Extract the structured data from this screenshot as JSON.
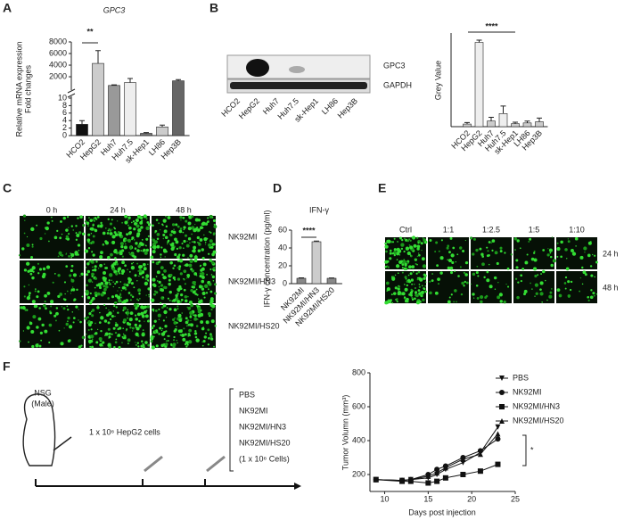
{
  "panels": {
    "letters": [
      "A",
      "B",
      "C",
      "D",
      "E",
      "F"
    ]
  },
  "blot": {
    "bands": [
      "GPC3",
      "GAPDH"
    ]
  },
  "panel_c": {
    "columns": [
      "0 h",
      "24 h",
      "48 h"
    ],
    "rows": [
      "NK92MI",
      "NK92MI/HN3",
      "NK92MI/HS20"
    ]
  },
  "panel_e": {
    "columns": [
      "Ctrl",
      "1:1",
      "1:2.5",
      "1:5",
      "1:10"
    ],
    "rows": [
      "24 h",
      "48 h"
    ]
  },
  "schematic": {
    "mouse": "NSG",
    "sex": "(Male)",
    "injection": "1 x 10⁶ HepG2 cells",
    "groups": [
      "PBS",
      "NK92MI",
      "NK92MI/HN3",
      "NK92MI/HS20"
    ],
    "dose": "(1 x 10⁶ Cells)"
  },
  "chart_data": [
    {
      "type": "bar",
      "title": "GPC3",
      "y_label": [
        "Relative mRNA expression",
        "Fold changes"
      ],
      "categories": [
        "HCO2",
        "HepG2",
        "Huh7",
        "Huh7.5",
        "sk-Hep1",
        "LH86",
        "Hep3B"
      ],
      "values": [
        3,
        4300,
        500,
        1000,
        0.6,
        2.3,
        1300
      ],
      "errors": [
        1,
        2200,
        100,
        700,
        0.2,
        0.5,
        200
      ],
      "colors": [
        "#111111",
        "#cccccc",
        "#999999",
        "#eeeeee",
        "#777777",
        "#cccccc",
        "#666666"
      ],
      "y_segments": [
        {
          "ylim": [
            0,
            10
          ],
          "yticks": [
            0,
            2,
            4,
            6,
            8,
            10
          ]
        },
        {
          "ylim": [
            10,
            8000
          ],
          "yticks": [
            2000,
            4000,
            6000,
            8000
          ]
        }
      ],
      "annotation": "**"
    },
    {
      "type": "bar",
      "y_label": "Grey Value",
      "categories": [
        "HCO2",
        "HepG2",
        "Huh7",
        "Huh7.5",
        "sk-Hep1",
        "LH86",
        "Hep3B"
      ],
      "values": [
        0.7,
        22.5,
        1.5,
        3.5,
        0.8,
        1.0,
        1.3
      ],
      "errors": [
        0.4,
        0.6,
        1.0,
        2.0,
        0.4,
        0.5,
        1.0
      ],
      "colors": [
        "#cccccc",
        "#eeeeee",
        "#cccccc",
        "#eeeeee",
        "#cccccc",
        "#cccccc",
        "#cccccc"
      ],
      "ylim": [
        0,
        25
      ],
      "annotation": "****"
    },
    {
      "type": "bar",
      "title": "IFN-γ",
      "y_label": "IFN-γ concentration (pg/ml)",
      "categories": [
        "NK92MI",
        "NK92MI/HN3",
        "NK92MI/HS20"
      ],
      "values": [
        6,
        47,
        6
      ],
      "errors": [
        0.5,
        0.8,
        0.4
      ],
      "colors": [
        "#888888",
        "#cccccc",
        "#888888"
      ],
      "ylim": [
        0,
        60
      ],
      "yticks": [
        0,
        20,
        40,
        60
      ],
      "annotation": "****"
    },
    {
      "type": "line",
      "y_label": "Tumor Volumn (mm³)",
      "x_label": "Days post injection",
      "x": [
        9,
        12,
        13,
        15,
        16,
        17,
        19,
        21,
        23
      ],
      "series": [
        {
          "name": "PBS",
          "marker": "triangle-down",
          "color": "#111111",
          "values": [
            170,
            165,
            170,
            180,
            200,
            230,
            270,
            330,
            480
          ]
        },
        {
          "name": "NK92MI",
          "marker": "circle",
          "color": "#111111",
          "values": [
            170,
            165,
            170,
            200,
            230,
            250,
            300,
            340,
            410
          ]
        },
        {
          "name": "NK92MI/HN3",
          "marker": "square",
          "color": "#111111",
          "values": [
            170,
            160,
            160,
            150,
            160,
            180,
            200,
            220,
            260
          ]
        },
        {
          "name": "NK92MI/HS20",
          "marker": "triangle-up",
          "color": "#111111",
          "values": [
            170,
            165,
            170,
            190,
            210,
            240,
            290,
            320,
            440
          ]
        }
      ],
      "xlim": [
        8,
        25
      ],
      "xticks": [
        10,
        15,
        20,
        25
      ],
      "ylim": [
        100,
        800
      ],
      "yticks": [
        200,
        400,
        600,
        800
      ],
      "annotation": "*"
    }
  ]
}
